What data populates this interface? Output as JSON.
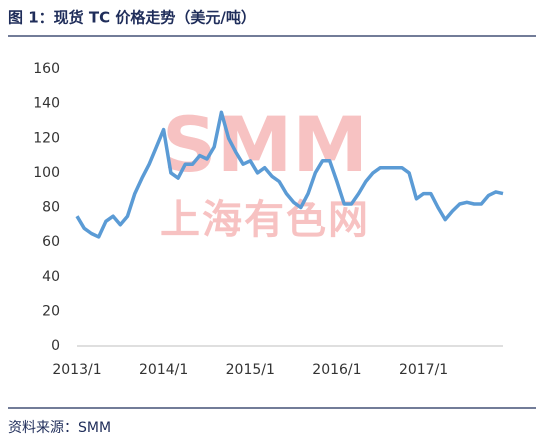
{
  "chart_data": {
    "type": "line",
    "title": "图 1：现货 TC 价格走势（美元/吨）",
    "categories": [
      "2013/1",
      null,
      null,
      null,
      null,
      null,
      null,
      null,
      null,
      null,
      null,
      null,
      "2014/1",
      null,
      null,
      null,
      null,
      null,
      null,
      null,
      null,
      null,
      null,
      null,
      "2015/1",
      null,
      null,
      null,
      null,
      null,
      null,
      null,
      null,
      null,
      null,
      null,
      "2016/1",
      null,
      null,
      null,
      null,
      null,
      null,
      null,
      null,
      null,
      null,
      null,
      "2017/1",
      null,
      null,
      null,
      null,
      null,
      null,
      null,
      null,
      null,
      null,
      null
    ],
    "values": [
      75,
      68,
      65,
      63,
      72,
      75,
      70,
      75,
      88,
      97,
      105,
      115,
      125,
      100,
      97,
      105,
      105,
      110,
      108,
      115,
      135,
      120,
      112,
      105,
      107,
      100,
      103,
      98,
      95,
      88,
      83,
      80,
      88,
      100,
      107,
      107,
      95,
      82,
      82,
      88,
      95,
      100,
      103,
      103,
      103,
      103,
      100,
      85,
      88,
      88,
      80,
      73,
      78,
      82,
      83,
      82,
      82,
      87,
      89,
      88
    ],
    "color": "#5b9bd5",
    "ylim": [
      0,
      160
    ],
    "yticks": [
      0,
      20,
      40,
      60,
      80,
      100,
      120,
      140,
      160
    ],
    "grid": false
  },
  "watermark": {
    "logo": "SMM",
    "text": "上海有色网"
  },
  "source": "资料来源：SMM"
}
